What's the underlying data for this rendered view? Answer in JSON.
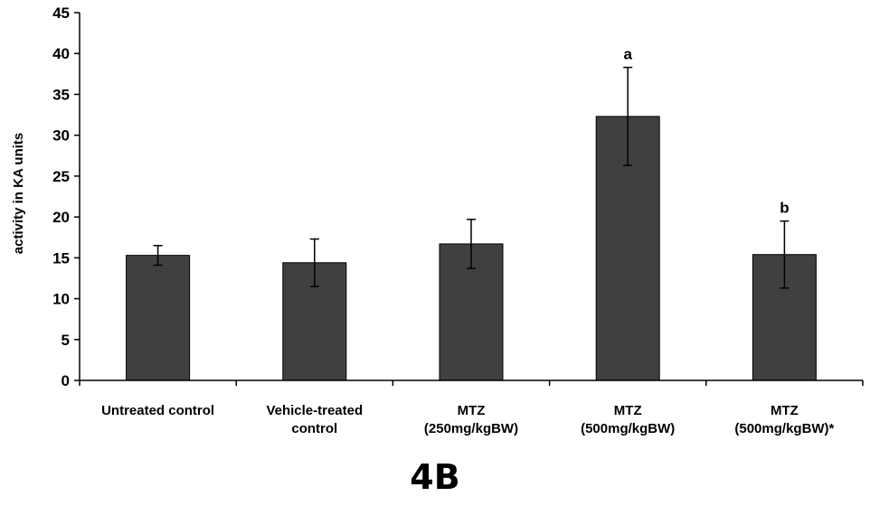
{
  "panel_label": "4B",
  "chart_data": {
    "type": "bar",
    "ylabel": "activity in KA units",
    "ylim": [
      0,
      45
    ],
    "yticks": [
      0,
      5,
      10,
      15,
      20,
      25,
      30,
      35,
      40,
      45
    ],
    "grid": false,
    "categories": [
      [
        "Untreated control"
      ],
      [
        "Vehicle-treated",
        "control"
      ],
      [
        "MTZ",
        "(250mg/kgBW)"
      ],
      [
        "MTZ",
        "(500mg/kgBW)"
      ],
      [
        "MTZ",
        "(500mg/kgBW)*"
      ]
    ],
    "values": [
      15.3,
      14.4,
      16.7,
      32.3,
      15.4
    ],
    "errors": [
      1.2,
      2.9,
      3.0,
      6.0,
      4.1
    ],
    "annotations": [
      "",
      "",
      "",
      "a",
      "b"
    ],
    "colors": {
      "bar": "#404040",
      "axis": "#000000"
    }
  }
}
